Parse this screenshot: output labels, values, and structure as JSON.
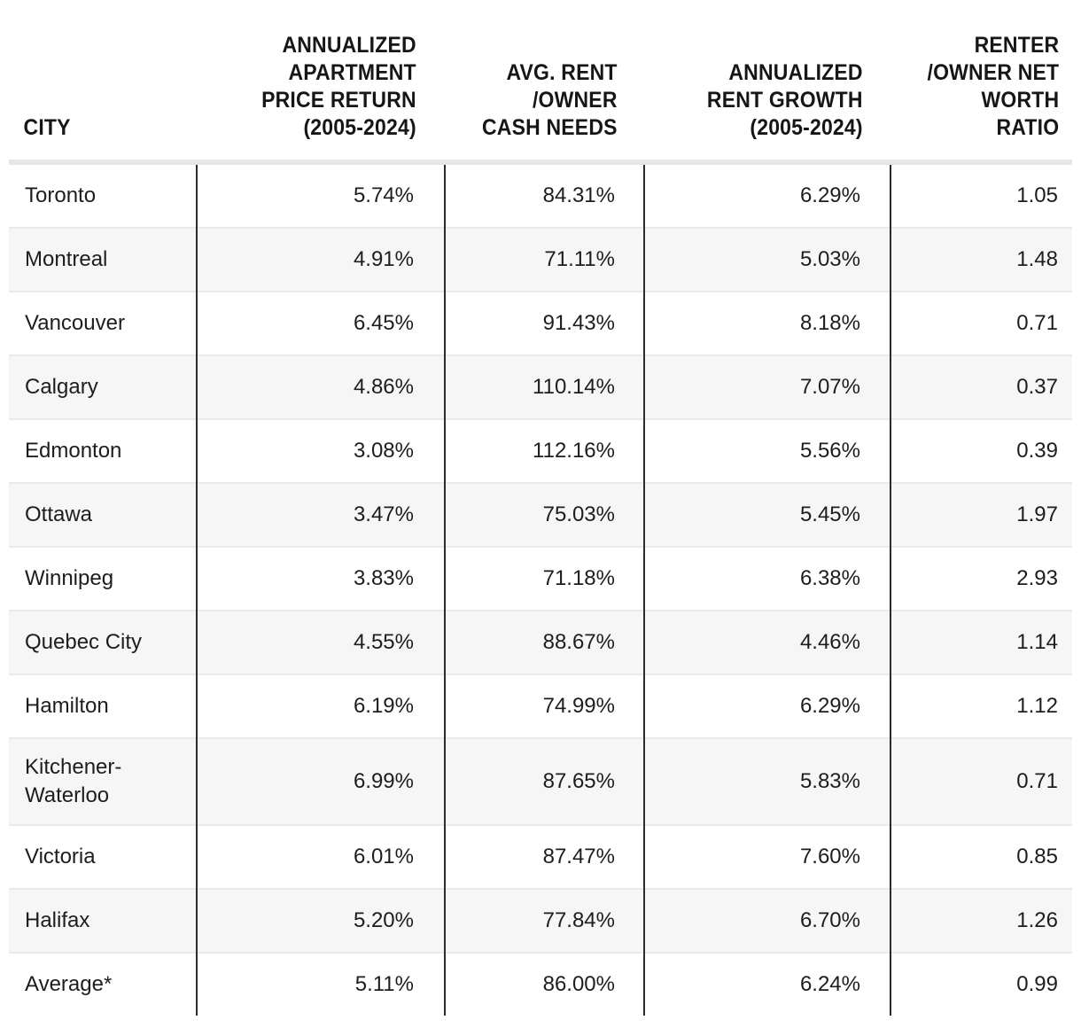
{
  "chart_data": {
    "type": "table",
    "title": "",
    "columns": [
      {
        "id": "city",
        "label": "CITY",
        "align": "left"
      },
      {
        "id": "price_return",
        "label": "ANNUALIZED\nAPARTMENT\nPRICE RETURN\n(2005-2024)",
        "align": "right"
      },
      {
        "id": "cash_needs",
        "label": "AVG. RENT\n/OWNER\nCASH NEEDS",
        "align": "right"
      },
      {
        "id": "rent_growth",
        "label": "ANNUALIZED\nRENT GROWTH\n(2005-2024)",
        "align": "right"
      },
      {
        "id": "net_worth_ratio",
        "label": "RENTER\n/OWNER NET\nWORTH\nRATIO",
        "align": "right"
      }
    ],
    "rows": [
      {
        "city": "Toronto",
        "price_return": "5.74%",
        "cash_needs": "84.31%",
        "rent_growth": "6.29%",
        "net_worth_ratio": "1.05"
      },
      {
        "city": "Montreal",
        "price_return": "4.91%",
        "cash_needs": "71.11%",
        "rent_growth": "5.03%",
        "net_worth_ratio": "1.48"
      },
      {
        "city": "Vancouver",
        "price_return": "6.45%",
        "cash_needs": "91.43%",
        "rent_growth": "8.18%",
        "net_worth_ratio": "0.71"
      },
      {
        "city": "Calgary",
        "price_return": "4.86%",
        "cash_needs": "110.14%",
        "rent_growth": "7.07%",
        "net_worth_ratio": "0.37"
      },
      {
        "city": "Edmonton",
        "price_return": "3.08%",
        "cash_needs": "112.16%",
        "rent_growth": "5.56%",
        "net_worth_ratio": "0.39"
      },
      {
        "city": "Ottawa",
        "price_return": "3.47%",
        "cash_needs": "75.03%",
        "rent_growth": "5.45%",
        "net_worth_ratio": "1.97"
      },
      {
        "city": "Winnipeg",
        "price_return": "3.83%",
        "cash_needs": "71.18%",
        "rent_growth": "6.38%",
        "net_worth_ratio": "2.93"
      },
      {
        "city": "Quebec City",
        "price_return": "4.55%",
        "cash_needs": "88.67%",
        "rent_growth": "4.46%",
        "net_worth_ratio": "1.14"
      },
      {
        "city": "Hamilton",
        "price_return": "6.19%",
        "cash_needs": "74.99%",
        "rent_growth": "6.29%",
        "net_worth_ratio": "1.12"
      },
      {
        "city": "Kitchener-Waterloo",
        "price_return": "6.99%",
        "cash_needs": "87.65%",
        "rent_growth": "5.83%",
        "net_worth_ratio": "0.71"
      },
      {
        "city": "Victoria",
        "price_return": "6.01%",
        "cash_needs": "87.47%",
        "rent_growth": "7.60%",
        "net_worth_ratio": "0.85"
      },
      {
        "city": "Halifax",
        "price_return": "5.20%",
        "cash_needs": "77.84%",
        "rent_growth": "6.70%",
        "net_worth_ratio": "1.26"
      },
      {
        "city": "Average*",
        "price_return": "5.11%",
        "cash_needs": "86.00%",
        "rent_growth": "6.24%",
        "net_worth_ratio": "0.99"
      }
    ],
    "layout": {
      "grid": "vertical dividers between value columns, light horizontal separators between rows",
      "row_striping": "alternating white / light gray starting with white"
    },
    "colors": {
      "column_divider": "#2c2c2c",
      "row_alt_background": "#f6f6f6",
      "row_separator": "#e9e9e9",
      "header_band": "#e5e6e8",
      "text": "#1d1d1d"
    }
  }
}
